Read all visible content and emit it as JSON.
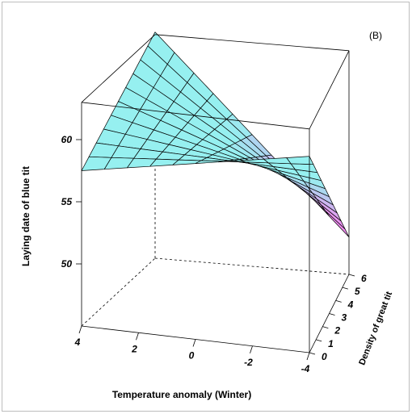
{
  "chart_data": {
    "type": "surface3d",
    "panel_label": "(B)",
    "xlabel": "Temperature anomaly (Winter)",
    "ylabel": "Density of great tit",
    "zlabel": "Laying date of blue tit",
    "x_ticks": [
      "4",
      "2",
      "0",
      "-2",
      "-4"
    ],
    "y_ticks": [
      "0",
      "1",
      "2",
      "3",
      "4",
      "5",
      "6"
    ],
    "z_ticks": [
      "50",
      "55",
      "60"
    ],
    "xlim": [
      -4,
      4
    ],
    "ylim": [
      0,
      6
    ],
    "zlim": [
      45,
      63
    ],
    "corner_values": [
      {
        "temperature": 4,
        "density": 0,
        "laying_date": 57.5
      },
      {
        "temperature": 4,
        "density": 6,
        "laying_date": 63.2
      },
      {
        "temperature": -4,
        "density": 6,
        "laying_date": 48.0
      },
      {
        "temperature": -4,
        "density": 0,
        "laying_date": 60.8
      }
    ],
    "color_high": "#96f0f0",
    "color_low": "#f08cf0",
    "grid": false
  }
}
